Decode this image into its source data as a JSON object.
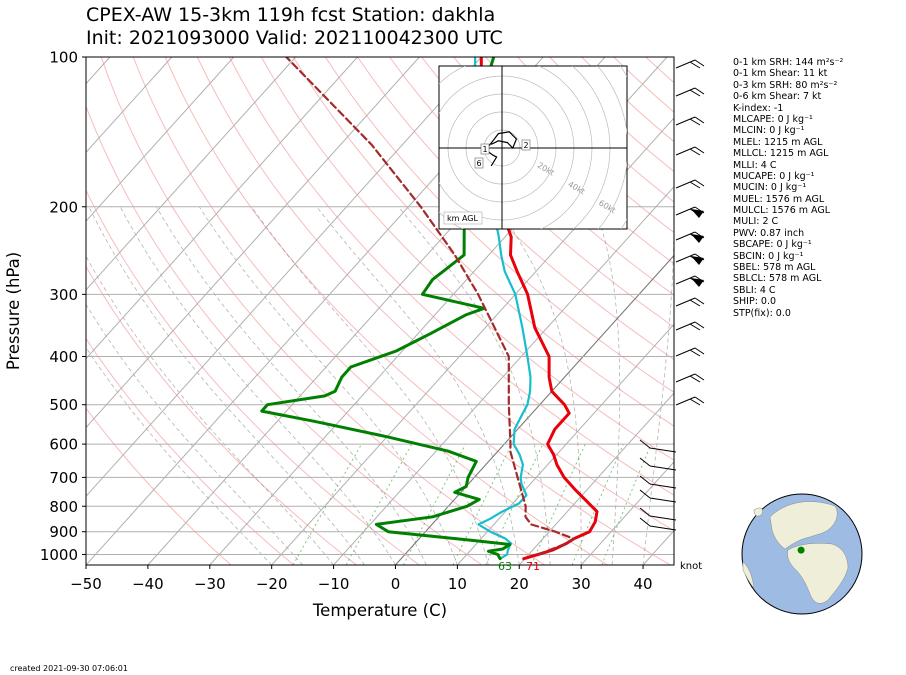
{
  "title": {
    "line1": "CPEX-AW 15-3km  119h fcst  Station: dakhla",
    "line2": "Init: 2021093000  Valid: 202110042300 UTC"
  },
  "created": "created 2021-09-30 07:06:01",
  "stats": [
    "0-1 km SRH: 144 m²s⁻²",
    "0-1 km Shear: 11 kt",
    "0-3 km SRH: 80 m²s⁻²",
    "0-6 km Shear: 7 kt",
    "K-index: -1",
    "MLCAPE: 0 J kg⁻¹",
    "MLCIN: 0 J kg⁻¹",
    "MLEL: 1215 m AGL",
    "MLLCL: 1215 m AGL",
    "MLLI: 4 C",
    "MUCAPE: 0 J kg⁻¹",
    "MUCIN: 0 J kg⁻¹",
    "MUEL: 1576 m AGL",
    "MULCL: 1576 m AGL",
    "MULI: 2 C",
    "PWV: 0.87 inch",
    "SBCAPE: 0 J kg⁻¹",
    "SBCIN: 0 J kg⁻¹",
    "SBEL: 578 m AGL",
    "SBLCL: 578 m AGL",
    "SBLI: 4 C",
    "SHIP: 0.0",
    "STP(fix): 0.0"
  ],
  "chart_data": [
    {
      "type": "line",
      "subtype": "skew-T log-P sounding",
      "xlabel": "Temperature (C)",
      "ylabel": "Pressure (hPa)",
      "xlim": [
        -50,
        45
      ],
      "ylim": [
        1050,
        100
      ],
      "yscale": "log",
      "xticks": [
        -50,
        -40,
        -30,
        -20,
        -10,
        0,
        10,
        20,
        30,
        40
      ],
      "yticks": [
        100,
        200,
        300,
        400,
        500,
        600,
        700,
        800,
        900,
        1000
      ],
      "grid": true,
      "surface_labels": {
        "dewpoint_F": "63",
        "temperature_F": "71"
      },
      "wind_units": "knot",
      "series": [
        {
          "color": "#e8000b",
          "points": [
            [
              1020,
              19.8
            ],
            [
              1000,
              21.5
            ],
            [
              980,
              23.2
            ],
            [
              950,
              24.5
            ],
            [
              930,
              25
            ],
            [
              900,
              26.5
            ],
            [
              860,
              26
            ],
            [
              820,
              24.8
            ],
            [
              780,
              21.5
            ],
            [
              740,
              18
            ],
            [
              700,
              14.5
            ],
            [
              660,
              11.5
            ],
            [
              630,
              9.5
            ],
            [
              600,
              7
            ],
            [
              560,
              6
            ],
            [
              520,
              6
            ],
            [
              500,
              4
            ],
            [
              470,
              0
            ],
            [
              440,
              -2.5
            ],
            [
              400,
              -5.5
            ],
            [
              350,
              -12
            ],
            [
              300,
              -18
            ],
            [
              270,
              -23
            ],
            [
              250,
              -26.5
            ],
            [
              230,
              -29
            ],
            [
              210,
              -33
            ],
            [
              200,
              -35
            ],
            [
              185,
              -38
            ],
            [
              170,
              -40
            ],
            [
              160,
              -42
            ],
            [
              145,
              -46
            ],
            [
              135,
              -48
            ],
            [
              125,
              -51
            ],
            [
              118,
              -54
            ],
            [
              110,
              -57
            ],
            [
              100,
              -60
            ]
          ]
        },
        {
          "color": "#17becf",
          "points": [
            [
              1020,
              16
            ],
            [
              1000,
              16.5
            ],
            [
              980,
              16
            ],
            [
              950,
              15.5
            ],
            [
              930,
              14
            ],
            [
              900,
              10.5
            ],
            [
              870,
              7.5
            ],
            [
              850,
              8.5
            ],
            [
              820,
              9.5
            ],
            [
              790,
              11
            ],
            [
              760,
              11
            ],
            [
              720,
              8.5
            ],
            [
              700,
              7.5
            ],
            [
              660,
              6
            ],
            [
              630,
              4
            ],
            [
              600,
              1.5
            ],
            [
              560,
              -0.5
            ],
            [
              520,
              -1.5
            ],
            [
              500,
              -2
            ],
            [
              470,
              -3.5
            ],
            [
              440,
              -5.5
            ],
            [
              400,
              -9
            ],
            [
              350,
              -14
            ],
            [
              300,
              -20
            ],
            [
              270,
              -25
            ],
            [
              250,
              -28
            ],
            [
              230,
              -31
            ],
            [
              210,
              -34.5
            ],
            [
              200,
              -36
            ],
            [
              185,
              -39
            ],
            [
              170,
              -41
            ],
            [
              160,
              -43
            ],
            [
              145,
              -47
            ],
            [
              135,
              -48.5
            ],
            [
              125,
              -51.5
            ],
            [
              118,
              -55
            ],
            [
              110,
              -58
            ],
            [
              100,
              -61
            ]
          ]
        },
        {
          "color": "#008000",
          "points": [
            [
              1020,
              16
            ],
            [
              1000,
              15
            ],
            [
              985,
              13
            ],
            [
              975,
              15
            ],
            [
              955,
              15.5
            ],
            [
              935,
              8
            ],
            [
              900,
              -6
            ],
            [
              870,
              -9
            ],
            [
              840,
              -1
            ],
            [
              800,
              3
            ],
            [
              775,
              4
            ],
            [
              750,
              -1
            ],
            [
              730,
              0
            ],
            [
              700,
              -1
            ],
            [
              650,
              -2
            ],
            [
              620,
              -8
            ],
            [
              580,
              -20
            ],
            [
              540,
              -34
            ],
            [
              515,
              -44
            ],
            [
              500,
              -44
            ],
            [
              480,
              -36
            ],
            [
              470,
              -35
            ],
            [
              440,
              -36
            ],
            [
              420,
              -36
            ],
            [
              390,
              -31
            ],
            [
              360,
              -28
            ],
            [
              330,
              -25
            ],
            [
              320,
              -23
            ],
            [
              300,
              -35
            ],
            [
              280,
              -35.5
            ],
            [
              270,
              -35
            ],
            [
              250,
              -34
            ],
            [
              220,
              -38
            ],
            [
              200,
              -42
            ],
            [
              190,
              -42
            ],
            [
              180,
              -43
            ],
            [
              170,
              -45
            ],
            [
              160,
              -47
            ],
            [
              140,
              -51
            ],
            [
              125,
              -54
            ],
            [
              110,
              -56
            ],
            [
              100,
              -58
            ]
          ]
        },
        {
          "color": "#a52a2a",
          "points": [
            [
              1000,
              21.5
            ],
            [
              950,
              24.5
            ],
            [
              930,
              25
            ],
            [
              900,
              21
            ],
            [
              870,
              16
            ],
            [
              840,
              14
            ],
            [
              800,
              12.5
            ],
            [
              700,
              7
            ],
            [
              620,
              2
            ],
            [
              600,
              1
            ],
            [
              500,
              -5
            ],
            [
              400,
              -12
            ],
            [
              300,
              -26
            ],
            [
              250,
              -35.5
            ],
            [
              200,
              -48
            ],
            [
              150,
              -65
            ],
            [
              100,
              -91.5
            ]
          ]
        }
      ]
    },
    {
      "type": "line",
      "subtype": "hodograph",
      "caption": "km AGL",
      "ring_labels": [
        "20kt",
        "40kt",
        "60kt",
        "80kt"
      ],
      "point_labels": [
        "1",
        "2",
        "6"
      ],
      "u": [
        -6,
        -2,
        3,
        6,
        8,
        4,
        -2,
        -5,
        -9,
        -5,
        -3,
        -6
      ],
      "v": [
        2,
        4,
        3,
        0,
        5,
        9,
        8,
        4,
        -1,
        -4,
        -5,
        -10
      ]
    },
    {
      "type": "scatter",
      "subtype": "globe locator",
      "points": [
        {
          "lon": -15.9,
          "lat": 23.7
        }
      ]
    }
  ]
}
